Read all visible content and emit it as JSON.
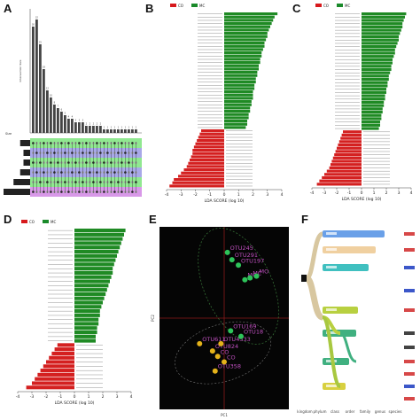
{
  "panels": {
    "a": {
      "label": "A"
    },
    "b": {
      "label": "B"
    },
    "c": {
      "label": "C"
    },
    "d": {
      "label": "D"
    },
    "e": {
      "label": "E"
    },
    "f": {
      "label": "F"
    }
  },
  "legend": {
    "group1": "CO",
    "group2": "MC",
    "color1": "#d7191c",
    "color2": "#1a8a2a"
  },
  "lda_axis_label": "LDA SCORE (log 10)",
  "pca_axes": {
    "x": "PC1",
    "y": "PC2"
  },
  "colors": {
    "red": "#d42020",
    "green": "#1f8a24",
    "pca_bg": "#050505",
    "gold": "#e4b21a",
    "purple": "#c050c0"
  },
  "chart_data": [
    {
      "id": "A",
      "type": "bar",
      "note": "UpSet-style intersection bar chart",
      "bars": [
        30,
        32,
        25,
        18,
        12,
        10,
        8,
        7,
        6,
        5,
        4,
        4,
        3,
        3,
        3,
        2,
        2,
        2,
        2,
        2,
        1,
        1,
        1,
        1,
        1,
        1,
        1,
        1,
        1,
        1
      ],
      "set_sizes": [
        3,
        2,
        2,
        3,
        5,
        8
      ],
      "set_band_colors": [
        "#90e890",
        "#a8a8e8",
        "#90e890",
        "#a8a8e8",
        "#90e890",
        "#d898e8"
      ],
      "ylabel": "Intersection Size",
      "xlabel": "Size",
      "ylim": [
        0,
        35
      ]
    },
    {
      "id": "B",
      "type": "bar",
      "orientation": "horizontal",
      "xlim": [
        -4,
        4
      ],
      "xticks": [
        -4,
        -3,
        -2,
        -1,
        0,
        1,
        2,
        3,
        4
      ],
      "green_values": [
        3.7,
        3.5,
        3.4,
        3.3,
        3.2,
        3.1,
        3.0,
        3.0,
        2.9,
        2.8,
        2.8,
        2.7,
        2.6,
        2.6,
        2.5,
        2.5,
        2.4,
        2.4,
        2.3,
        2.3,
        2.2,
        2.2,
        2.1,
        2.1,
        2.0,
        2.0,
        2.0,
        1.9,
        1.9,
        1.8,
        1.8,
        1.7,
        1.7,
        1.6,
        1.6,
        1.5
      ],
      "red_values": [
        -1.6,
        -1.7,
        -1.8,
        -1.9,
        -2.0,
        -2.1,
        -2.2,
        -2.2,
        -2.3,
        -2.4,
        -2.5,
        -2.6,
        -2.8,
        -3.0,
        -3.2,
        -3.5,
        -3.6,
        -3.8
      ]
    },
    {
      "id": "C",
      "type": "bar",
      "orientation": "horizontal",
      "xlim": [
        -4,
        4
      ],
      "xticks": [
        -4,
        -3,
        -2,
        -1,
        0,
        1,
        2,
        3,
        4
      ],
      "green_values": [
        3.6,
        3.5,
        3.4,
        3.3,
        3.3,
        3.2,
        3.1,
        3.0,
        3.0,
        2.9,
        2.8,
        2.7,
        2.7,
        2.6,
        2.5,
        2.5,
        2.4,
        2.4,
        2.3,
        2.2,
        2.2,
        2.1,
        2.1,
        2.0,
        2.0,
        1.9,
        1.9,
        1.8,
        1.8,
        1.7,
        1.7,
        1.6,
        1.6,
        1.5,
        1.5,
        1.4
      ],
      "red_values": [
        -1.5,
        -1.6,
        -1.7,
        -1.8,
        -1.9,
        -2.0,
        -2.1,
        -2.2,
        -2.3,
        -2.4,
        -2.5,
        -2.6,
        -2.8,
        -3.0,
        -3.2,
        -3.4,
        -3.6
      ]
    },
    {
      "id": "D",
      "type": "bar",
      "orientation": "horizontal",
      "xlim": [
        -4,
        4
      ],
      "xticks": [
        -4,
        -3,
        -2,
        -1,
        0,
        1,
        2,
        3,
        4
      ],
      "green_values": [
        3.6,
        3.5,
        3.4,
        3.3,
        3.2,
        3.1,
        3.0,
        2.9,
        2.8,
        2.7,
        2.7,
        2.6,
        2.5,
        2.4,
        2.3,
        2.2,
        2.1,
        2.0,
        1.9,
        1.8,
        1.8,
        1.7,
        1.7,
        1.6,
        1.6,
        1.5,
        1.5
      ],
      "red_values": [
        -1.2,
        -1.4,
        -1.6,
        -1.8,
        -2.0,
        -2.2,
        -2.4,
        -2.6,
        -2.8,
        -3.0,
        -3.4
      ]
    },
    {
      "id": "E",
      "type": "scatter",
      "xlabel": "PC1",
      "ylabel": "PC2",
      "points": [
        {
          "label": "OTU245",
          "x": 0.05,
          "y": 0.72,
          "color": "#2ec45a"
        },
        {
          "label": "OTU291",
          "x": 0.12,
          "y": 0.64,
          "color": "#2ec45a"
        },
        {
          "label": "OTU197",
          "x": 0.22,
          "y": 0.58,
          "color": "#2ec45a"
        },
        {
          "label": "MC",
          "x": 0.32,
          "y": 0.42,
          "color": "#2ec45a"
        },
        {
          "label": "MC",
          "x": 0.4,
          "y": 0.44,
          "color": "#2ec45a"
        },
        {
          "label": "MO",
          "x": 0.5,
          "y": 0.46,
          "color": "#2ec45a"
        },
        {
          "label": "OTU611",
          "x": -0.38,
          "y": -0.28,
          "color": "#e4b21a"
        },
        {
          "label": "OTU824",
          "x": -0.18,
          "y": -0.36,
          "color": "#e4b21a"
        },
        {
          "label": "OTU4533",
          "x": -0.05,
          "y": -0.28,
          "color": "#e4b21a"
        },
        {
          "label": "OTU169",
          "x": 0.1,
          "y": -0.14,
          "color": "#2ec45a"
        },
        {
          "label": "OTU18",
          "x": 0.26,
          "y": -0.2,
          "color": "#2ec45a"
        },
        {
          "label": "OTU358",
          "x": -0.14,
          "y": -0.58,
          "color": "#e4b21a"
        },
        {
          "label": "CO",
          "x": -0.1,
          "y": -0.42,
          "color": "#e4b21a"
        },
        {
          "label": "CO",
          "x": 0.0,
          "y": -0.48,
          "color": "#e4b21a"
        }
      ]
    },
    {
      "id": "F",
      "type": "diagram",
      "note": "Sankey-like taxonomic tree, levels from kingdom to species",
      "levels": [
        "kingdom",
        "phylum",
        "class",
        "order",
        "family",
        "genus",
        "species"
      ]
    }
  ]
}
